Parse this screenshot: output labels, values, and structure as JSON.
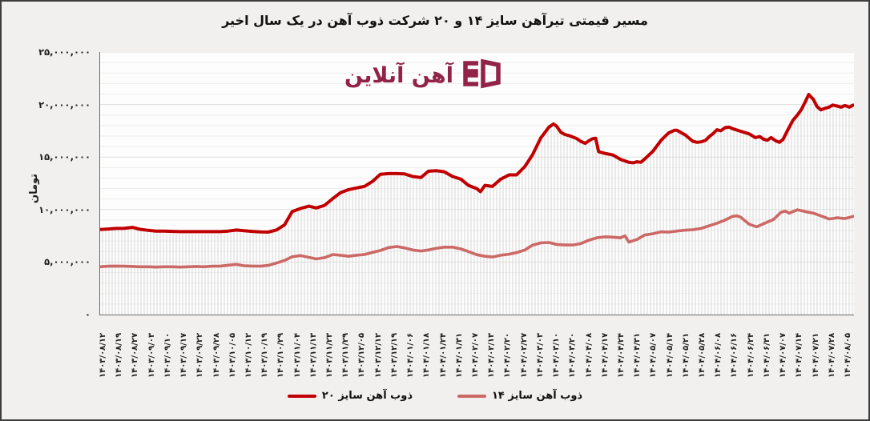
{
  "frame": {
    "background": "#f1f0ee",
    "border_color": "#3e3e3e"
  },
  "title": "مسیر قیمتی تیرآهن سایز ۱۴ و ۲۰ شرکت ذوب آهن در یک سال اخیر",
  "watermark": {
    "text": "آهن آنلاین",
    "color": "#8e1a41"
  },
  "y_axis": {
    "label": "تومان",
    "tick_labels": [
      "۲۵,۰۰۰,۰۰۰",
      "۲۰,۰۰۰,۰۰۰",
      "۱۵,۰۰۰,۰۰۰",
      "۱۰,۰۰۰,۰۰۰",
      "۵,۰۰۰,۰۰۰",
      "۰"
    ],
    "tick_values": [
      25000000,
      20000000,
      15000000,
      10000000,
      5000000,
      0
    ]
  },
  "legend": [
    {
      "label": "ذوب آهن سایز ۲۰",
      "color": "#c00000"
    },
    {
      "label": "ذوب آهن سایز ۱۴",
      "color": "#cc6966"
    }
  ],
  "chart_data": {
    "type": "line",
    "title": "مسیر قیمتی تیرآهن سایز ۱۴ و ۲۰ شرکت ذوب آهن در یک سال اخیر",
    "xlabel": "",
    "ylabel": "تومان",
    "ylim": [
      0,
      25000000
    ],
    "value_unit": "تومان",
    "value_scale": 1000000,
    "grid": {
      "y_minor_step": 1000000,
      "y_major_step": 5000000,
      "x_drop_lines_under_series": "ذوب آهن سایز ۲۰",
      "legend_position": "bottom-center"
    },
    "x_tick_labels": [
      "۱۴۰۳/۰۸/۱۲",
      "۱۴۰۳/۰۸/۱۹",
      "۱۴۰۳/۰۸/۲۷",
      "۱۴۰۳/۰۹/۰۳",
      "۱۴۰۳/۰۹/۱۰",
      "۱۴۰۳/۰۹/۱۷",
      "۱۴۰۳/۰۹/۲۲",
      "۱۴۰۳/۰۹/۲۸",
      "۱۴۰۳/۱۰/۰۵",
      "۱۴۰۳/۱۰/۱۲",
      "۱۴۰۳/۱۰/۱۹",
      "۱۴۰۳/۱۰/۲۹",
      "۱۴۰۳/۱۱/۰۴",
      "۱۴۰۳/۱۱/۱۳",
      "۱۴۰۳/۱۱/۲۳",
      "۱۴۰۳/۱۱/۲۹",
      "۱۴۰۳/۱۲/۰۵",
      "۱۴۰۳/۱۲/۱۲",
      "۱۴۰۳/۱۲/۱۹",
      "۱۴۰۴/۰۱/۰۶",
      "۱۴۰۴/۰۱/۱۸",
      "۱۴۰۴/۰۱/۲۴",
      "۱۴۰۴/۰۱/۳۱",
      "۱۴۰۴/۰۲/۰۷",
      "۱۴۰۴/۰۲/۱۳",
      "۱۴۰۴/۰۲/۲۰",
      "۱۴۰۴/۰۲/۲۷",
      "۱۴۰۴/۰۳/۰۳",
      "۱۴۰۴/۰۳/۱۰",
      "۱۴۰۴/۰۳/۲۰",
      "۱۴۰۴/۰۴/۰۸",
      "۱۴۰۴/۰۴/۱۷",
      "۱۴۰۴/۰۴/۲۴",
      "۱۴۰۴/۰۴/۳۱",
      "۱۴۰۴/۰۵/۰۷",
      "۱۴۰۴/۰۵/۱۴",
      "۱۴۰۴/۰۵/۲۱",
      "۱۴۰۴/۰۵/۲۸",
      "۱۴۰۴/۰۶/۰۸",
      "۱۴۰۴/۰۶/۱۶",
      "۱۴۰۴/۰۶/۲۴",
      "۱۴۰۴/۰۶/۳۱",
      "۱۴۰۴/۰۷/۰۷",
      "۱۴۰۴/۰۷/۱۴",
      "۱۴۰۴/۰۷/۲۱",
      "۱۴۰۴/۰۷/۲۸",
      "۱۴۰۴/۰۸/۰۵"
    ],
    "series": [
      {
        "name": "ذوب آهن سایز ۲۰",
        "color": "#c00000",
        "points_t_value_million": [
          [
            0.0,
            8.1
          ],
          [
            0.011,
            8.15
          ],
          [
            0.021,
            8.2
          ],
          [
            0.032,
            8.22
          ],
          [
            0.043,
            8.3
          ],
          [
            0.053,
            8.12
          ],
          [
            0.064,
            8.02
          ],
          [
            0.074,
            7.95
          ],
          [
            0.085,
            7.95
          ],
          [
            0.096,
            7.92
          ],
          [
            0.106,
            7.9
          ],
          [
            0.117,
            7.9
          ],
          [
            0.128,
            7.9
          ],
          [
            0.138,
            7.9
          ],
          [
            0.149,
            7.9
          ],
          [
            0.16,
            7.9
          ],
          [
            0.17,
            7.95
          ],
          [
            0.181,
            8.05
          ],
          [
            0.191,
            7.98
          ],
          [
            0.202,
            7.92
          ],
          [
            0.213,
            7.87
          ],
          [
            0.223,
            7.85
          ],
          [
            0.234,
            8.05
          ],
          [
            0.245,
            8.55
          ],
          [
            0.255,
            9.8
          ],
          [
            0.266,
            10.1
          ],
          [
            0.277,
            10.32
          ],
          [
            0.287,
            10.15
          ],
          [
            0.298,
            10.4
          ],
          [
            0.309,
            11.05
          ],
          [
            0.319,
            11.6
          ],
          [
            0.33,
            11.9
          ],
          [
            0.34,
            12.05
          ],
          [
            0.351,
            12.2
          ],
          [
            0.362,
            12.7
          ],
          [
            0.372,
            13.35
          ],
          [
            0.383,
            13.42
          ],
          [
            0.394,
            13.42
          ],
          [
            0.404,
            13.4
          ],
          [
            0.415,
            13.15
          ],
          [
            0.426,
            13.05
          ],
          [
            0.436,
            13.65
          ],
          [
            0.447,
            13.7
          ],
          [
            0.457,
            13.6
          ],
          [
            0.468,
            13.15
          ],
          [
            0.479,
            12.9
          ],
          [
            0.489,
            12.3
          ],
          [
            0.5,
            12.0
          ],
          [
            0.505,
            11.7
          ],
          [
            0.511,
            12.3
          ],
          [
            0.521,
            12.2
          ],
          [
            0.532,
            12.9
          ],
          [
            0.543,
            13.3
          ],
          [
            0.553,
            13.3
          ],
          [
            0.564,
            14.1
          ],
          [
            0.574,
            15.2
          ],
          [
            0.585,
            16.8
          ],
          [
            0.596,
            17.85
          ],
          [
            0.602,
            18.15
          ],
          [
            0.606,
            17.95
          ],
          [
            0.612,
            17.35
          ],
          [
            0.617,
            17.15
          ],
          [
            0.622,
            17.05
          ],
          [
            0.628,
            16.9
          ],
          [
            0.633,
            16.75
          ],
          [
            0.638,
            16.5
          ],
          [
            0.644,
            16.3
          ],
          [
            0.649,
            16.55
          ],
          [
            0.654,
            16.75
          ],
          [
            0.658,
            16.78
          ],
          [
            0.662,
            15.5
          ],
          [
            0.67,
            15.35
          ],
          [
            0.681,
            15.2
          ],
          [
            0.691,
            14.78
          ],
          [
            0.702,
            14.5
          ],
          [
            0.708,
            14.45
          ],
          [
            0.713,
            14.55
          ],
          [
            0.718,
            14.5
          ],
          [
            0.723,
            14.8
          ],
          [
            0.734,
            15.55
          ],
          [
            0.745,
            16.6
          ],
          [
            0.755,
            17.3
          ],
          [
            0.763,
            17.55
          ],
          [
            0.766,
            17.55
          ],
          [
            0.777,
            17.1
          ],
          [
            0.787,
            16.5
          ],
          [
            0.793,
            16.4
          ],
          [
            0.798,
            16.45
          ],
          [
            0.804,
            16.6
          ],
          [
            0.809,
            16.95
          ],
          [
            0.815,
            17.3
          ],
          [
            0.819,
            17.6
          ],
          [
            0.824,
            17.5
          ],
          [
            0.83,
            17.8
          ],
          [
            0.835,
            17.85
          ],
          [
            0.84,
            17.7
          ],
          [
            0.851,
            17.45
          ],
          [
            0.862,
            17.2
          ],
          [
            0.87,
            16.85
          ],
          [
            0.876,
            16.95
          ],
          [
            0.881,
            16.7
          ],
          [
            0.886,
            16.6
          ],
          [
            0.891,
            16.85
          ],
          [
            0.897,
            16.55
          ],
          [
            0.902,
            16.4
          ],
          [
            0.907,
            16.7
          ],
          [
            0.913,
            17.55
          ],
          [
            0.92,
            18.5
          ],
          [
            0.926,
            19.0
          ],
          [
            0.931,
            19.5
          ],
          [
            0.936,
            20.2
          ],
          [
            0.941,
            20.95
          ],
          [
            0.947,
            20.5
          ],
          [
            0.952,
            19.8
          ],
          [
            0.957,
            19.5
          ],
          [
            0.963,
            19.65
          ],
          [
            0.968,
            19.75
          ],
          [
            0.973,
            19.95
          ],
          [
            0.979,
            19.85
          ],
          [
            0.984,
            19.75
          ],
          [
            0.989,
            19.9
          ],
          [
            0.995,
            19.75
          ],
          [
            1.0,
            19.95
          ]
        ]
      },
      {
        "name": "ذوب آهن سایز ۱۴",
        "color": "#cc6966",
        "points_t_value_million": [
          [
            0.0,
            4.55
          ],
          [
            0.011,
            4.6
          ],
          [
            0.021,
            4.62
          ],
          [
            0.032,
            4.6
          ],
          [
            0.043,
            4.58
          ],
          [
            0.053,
            4.55
          ],
          [
            0.064,
            4.55
          ],
          [
            0.074,
            4.52
          ],
          [
            0.085,
            4.55
          ],
          [
            0.096,
            4.55
          ],
          [
            0.106,
            4.52
          ],
          [
            0.117,
            4.55
          ],
          [
            0.128,
            4.58
          ],
          [
            0.138,
            4.55
          ],
          [
            0.149,
            4.6
          ],
          [
            0.16,
            4.62
          ],
          [
            0.17,
            4.7
          ],
          [
            0.181,
            4.78
          ],
          [
            0.191,
            4.65
          ],
          [
            0.202,
            4.62
          ],
          [
            0.213,
            4.6
          ],
          [
            0.223,
            4.68
          ],
          [
            0.234,
            4.9
          ],
          [
            0.245,
            5.15
          ],
          [
            0.255,
            5.5
          ],
          [
            0.266,
            5.62
          ],
          [
            0.277,
            5.45
          ],
          [
            0.287,
            5.3
          ],
          [
            0.298,
            5.42
          ],
          [
            0.309,
            5.72
          ],
          [
            0.319,
            5.65
          ],
          [
            0.33,
            5.55
          ],
          [
            0.34,
            5.65
          ],
          [
            0.351,
            5.72
          ],
          [
            0.362,
            5.92
          ],
          [
            0.372,
            6.1
          ],
          [
            0.383,
            6.38
          ],
          [
            0.394,
            6.48
          ],
          [
            0.404,
            6.35
          ],
          [
            0.415,
            6.15
          ],
          [
            0.426,
            6.05
          ],
          [
            0.436,
            6.15
          ],
          [
            0.447,
            6.32
          ],
          [
            0.457,
            6.42
          ],
          [
            0.468,
            6.42
          ],
          [
            0.479,
            6.25
          ],
          [
            0.489,
            6.0
          ],
          [
            0.5,
            5.7
          ],
          [
            0.511,
            5.55
          ],
          [
            0.521,
            5.48
          ],
          [
            0.532,
            5.65
          ],
          [
            0.543,
            5.75
          ],
          [
            0.553,
            5.9
          ],
          [
            0.564,
            6.15
          ],
          [
            0.574,
            6.6
          ],
          [
            0.585,
            6.82
          ],
          [
            0.596,
            6.86
          ],
          [
            0.606,
            6.68
          ],
          [
            0.617,
            6.62
          ],
          [
            0.628,
            6.62
          ],
          [
            0.638,
            6.75
          ],
          [
            0.649,
            7.08
          ],
          [
            0.66,
            7.32
          ],
          [
            0.67,
            7.4
          ],
          [
            0.681,
            7.37
          ],
          [
            0.691,
            7.3
          ],
          [
            0.697,
            7.5
          ],
          [
            0.702,
            6.9
          ],
          [
            0.713,
            7.15
          ],
          [
            0.723,
            7.57
          ],
          [
            0.734,
            7.7
          ],
          [
            0.745,
            7.88
          ],
          [
            0.755,
            7.85
          ],
          [
            0.766,
            7.95
          ],
          [
            0.777,
            8.03
          ],
          [
            0.787,
            8.08
          ],
          [
            0.798,
            8.2
          ],
          [
            0.809,
            8.46
          ],
          [
            0.819,
            8.7
          ],
          [
            0.83,
            9.0
          ],
          [
            0.84,
            9.35
          ],
          [
            0.846,
            9.4
          ],
          [
            0.851,
            9.25
          ],
          [
            0.862,
            8.6
          ],
          [
            0.872,
            8.35
          ],
          [
            0.883,
            8.71
          ],
          [
            0.894,
            9.05
          ],
          [
            0.904,
            9.73
          ],
          [
            0.91,
            9.85
          ],
          [
            0.915,
            9.66
          ],
          [
            0.926,
            9.98
          ],
          [
            0.936,
            9.81
          ],
          [
            0.947,
            9.66
          ],
          [
            0.957,
            9.4
          ],
          [
            0.968,
            9.1
          ],
          [
            0.973,
            9.15
          ],
          [
            0.979,
            9.22
          ],
          [
            0.984,
            9.18
          ],
          [
            0.989,
            9.15
          ],
          [
            0.995,
            9.25
          ],
          [
            1.0,
            9.35
          ]
        ]
      }
    ]
  }
}
